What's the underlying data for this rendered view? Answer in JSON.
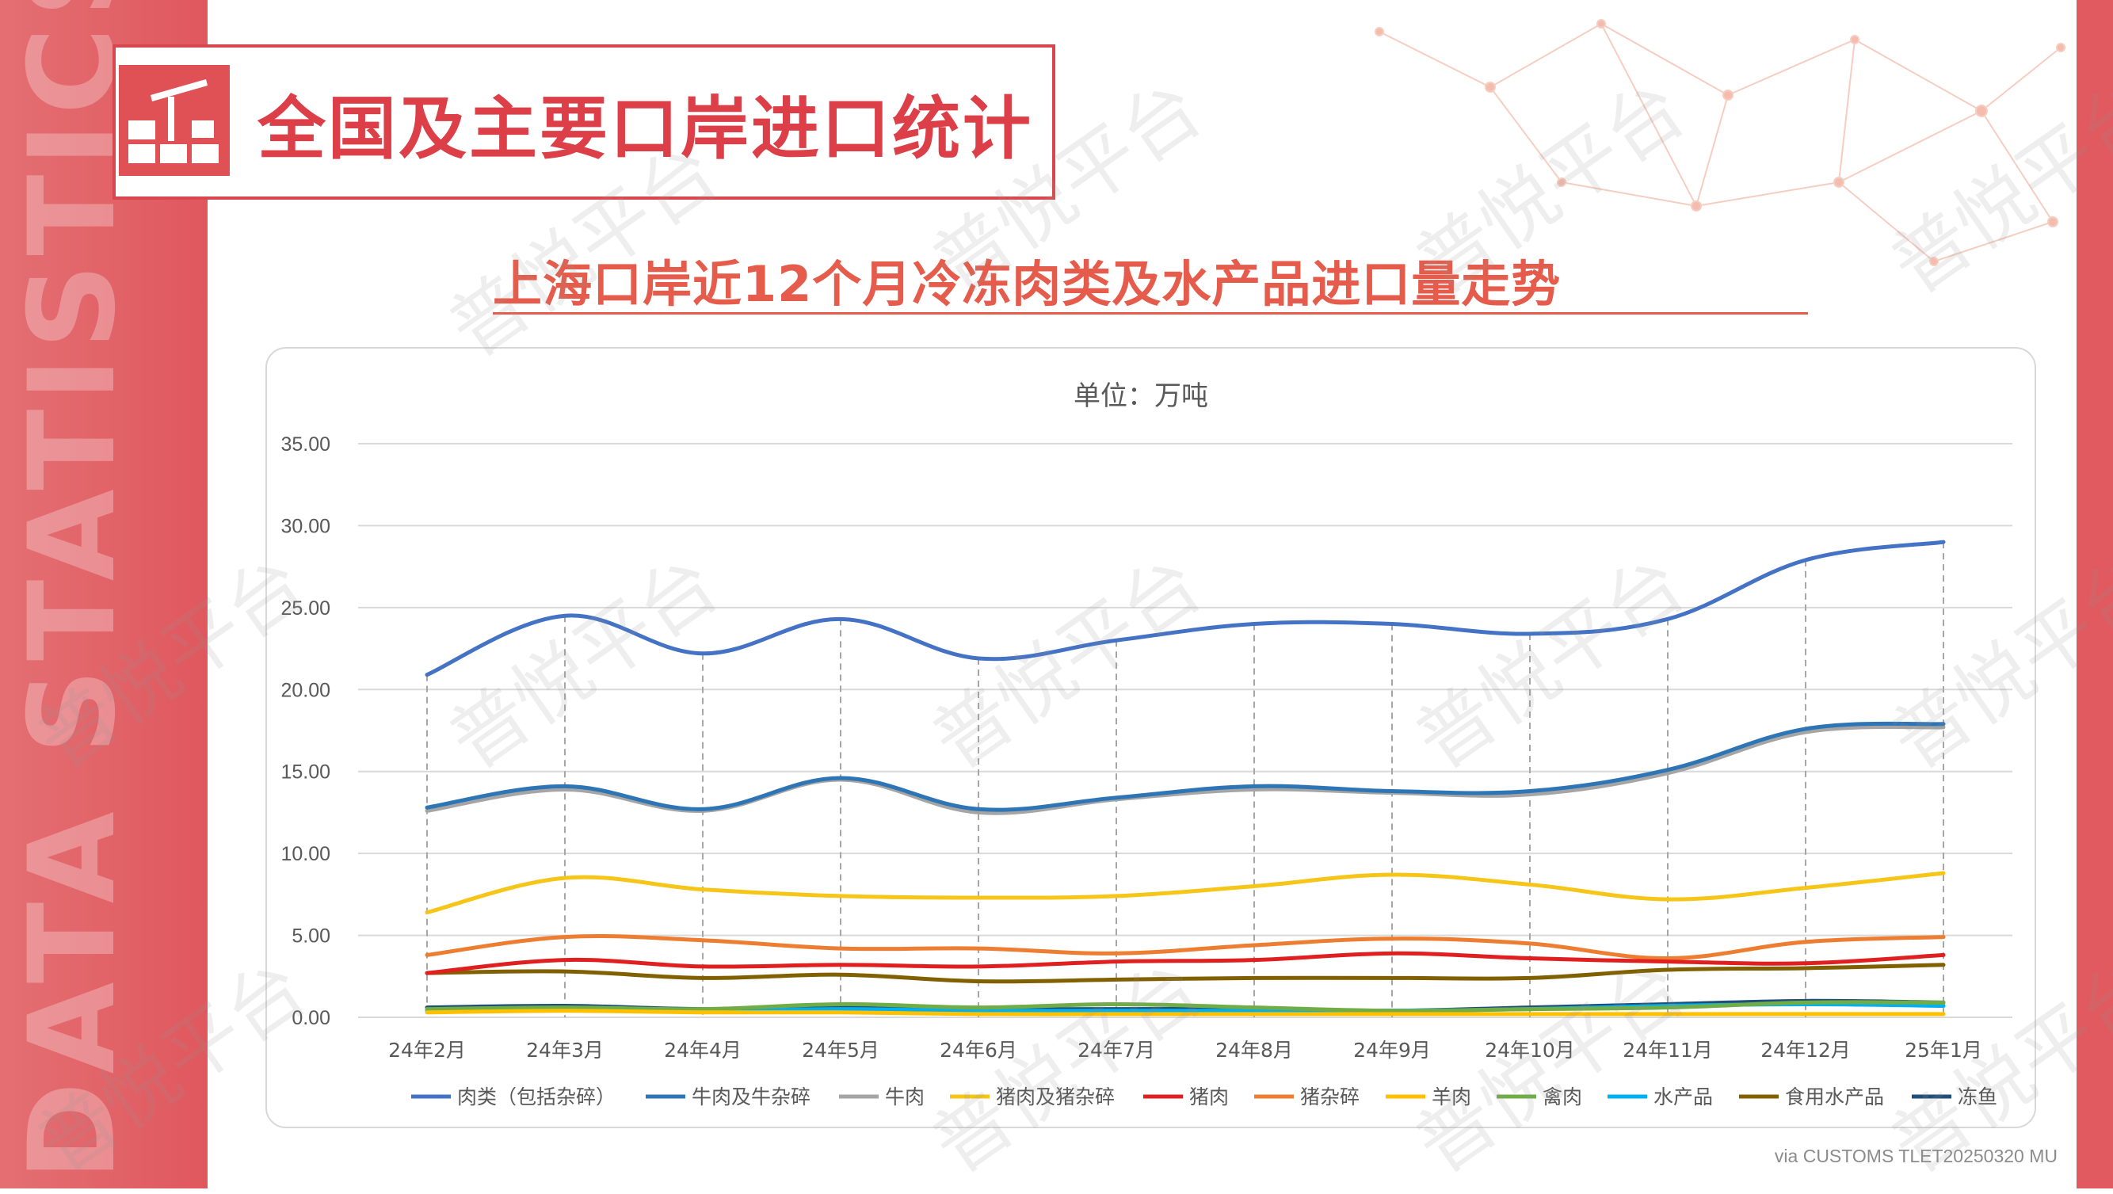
{
  "page": {
    "header_title": "全国及主要口岸进口统计",
    "subtitle": "上海口岸近12个月冷冻肉类及水产品进口量走势",
    "side_text": "DATA STATISTICS REPORT",
    "footer_note": "via CUSTOMS TLET20250320 MU",
    "watermark_text": "普悦平台"
  },
  "colors": {
    "band_red": "#df585e",
    "title_red": "#dc3f48",
    "subtitle_orange": "#e65c4c"
  },
  "chart_data": {
    "type": "line",
    "title": "",
    "unit_label": "单位：万吨",
    "categories": [
      "24年2月",
      "24年3月",
      "24年4月",
      "24年5月",
      "24年6月",
      "24年7月",
      "24年8月",
      "24年9月",
      "24年10月",
      "24年11月",
      "24年12月",
      "25年1月"
    ],
    "ylim": [
      0,
      35
    ],
    "yticks": [
      "0.00",
      "5.00",
      "10.00",
      "15.00",
      "20.00",
      "25.00",
      "30.00",
      "35.00"
    ],
    "grid": true,
    "legend_position": "bottom",
    "series": [
      {
        "name": "肉类（包括杂碎）",
        "color": "#4472c4",
        "values": [
          20.9,
          24.5,
          22.2,
          24.3,
          21.9,
          23.0,
          24.0,
          24.0,
          23.4,
          24.3,
          27.9,
          29.0
        ]
      },
      {
        "name": "牛肉及牛杂碎",
        "color": "#2e75b6",
        "values": [
          12.8,
          14.1,
          12.7,
          14.6,
          12.7,
          13.4,
          14.1,
          13.8,
          13.8,
          15.1,
          17.6,
          17.9
        ]
      },
      {
        "name": "牛肉",
        "color": "#a5a5a5",
        "values": [
          12.6,
          13.9,
          12.6,
          14.5,
          12.5,
          13.3,
          13.9,
          13.7,
          13.6,
          14.9,
          17.4,
          17.7
        ]
      },
      {
        "name": "猪肉及猪杂碎",
        "color": "#f5c518",
        "values": [
          6.4,
          8.5,
          7.8,
          7.4,
          7.3,
          7.4,
          8.0,
          8.7,
          8.1,
          7.2,
          7.9,
          8.8
        ]
      },
      {
        "name": "猪肉",
        "color": "#e02020",
        "values": [
          2.7,
          3.5,
          3.1,
          3.2,
          3.1,
          3.4,
          3.5,
          3.9,
          3.6,
          3.4,
          3.3,
          3.8
        ]
      },
      {
        "name": "猪杂碎",
        "color": "#ed7d31",
        "values": [
          3.8,
          4.9,
          4.7,
          4.2,
          4.2,
          3.9,
          4.4,
          4.8,
          4.5,
          3.6,
          4.6,
          4.9
        ]
      },
      {
        "name": "羊肉",
        "color": "#ffc000",
        "values": [
          0.3,
          0.4,
          0.3,
          0.3,
          0.2,
          0.2,
          0.2,
          0.2,
          0.2,
          0.2,
          0.2,
          0.2
        ]
      },
      {
        "name": "禽肉",
        "color": "#70ad47",
        "values": [
          0.5,
          0.6,
          0.5,
          0.8,
          0.6,
          0.8,
          0.6,
          0.4,
          0.5,
          0.6,
          0.9,
          0.9
        ]
      },
      {
        "name": "水产品",
        "color": "#00b0f0",
        "values": [
          0.4,
          0.5,
          0.4,
          0.5,
          0.4,
          0.4,
          0.4,
          0.4,
          0.5,
          0.7,
          0.8,
          0.7
        ]
      },
      {
        "name": "食用水产品",
        "color": "#806000",
        "values": [
          2.7,
          2.8,
          2.4,
          2.6,
          2.2,
          2.3,
          2.4,
          2.4,
          2.4,
          2.9,
          3.0,
          3.2
        ]
      },
      {
        "name": "冻鱼",
        "color": "#1f4e79",
        "values": [
          0.6,
          0.7,
          0.5,
          0.6,
          0.5,
          0.5,
          0.5,
          0.4,
          0.6,
          0.8,
          1.0,
          0.9
        ]
      }
    ]
  }
}
